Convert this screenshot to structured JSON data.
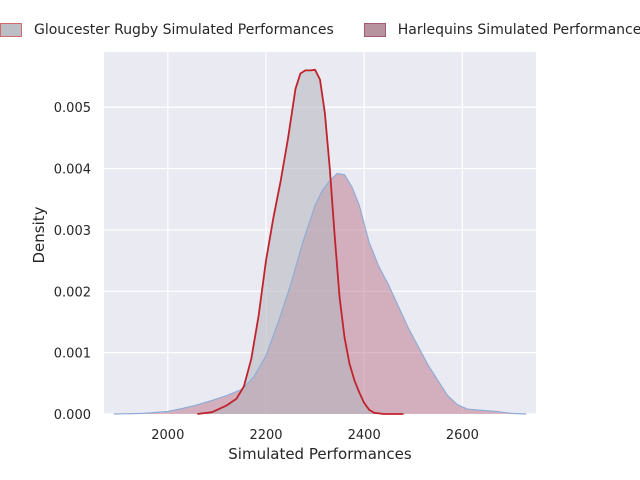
{
  "chart_data": {
    "type": "area",
    "title": "",
    "xlabel": "Simulated Performances",
    "ylabel": "Density",
    "xlim": [
      1870,
      2750
    ],
    "ylim": [
      0,
      0.0059
    ],
    "x_ticks": [
      "2000",
      "2200",
      "2400",
      "2600"
    ],
    "y_ticks": [
      "0.000",
      "0.001",
      "0.002",
      "0.003",
      "0.004",
      "0.005"
    ],
    "grid": true,
    "legend_position": "top",
    "series": [
      {
        "name": "Gloucester Rugby Simulated Performances",
        "fill_color": "#b3b5bd",
        "line_color": "#c0232c",
        "x": [
          2060,
          2090,
          2120,
          2140,
          2155,
          2170,
          2185,
          2200,
          2215,
          2230,
          2245,
          2260,
          2270,
          2280,
          2290,
          2300,
          2310,
          2320,
          2330,
          2340,
          2350,
          2360,
          2370,
          2380,
          2390,
          2400,
          2410,
          2420,
          2440,
          2460,
          2480
        ],
        "y": [
          0.0,
          3e-05,
          0.00014,
          0.00025,
          0.00045,
          0.0009,
          0.0016,
          0.0025,
          0.0032,
          0.0038,
          0.0045,
          0.0053,
          0.00555,
          0.0056,
          0.0056,
          0.00561,
          0.00545,
          0.0049,
          0.004,
          0.0029,
          0.0019,
          0.00125,
          0.00082,
          0.00055,
          0.00035,
          0.00018,
          7e-05,
          2e-05,
          0.0,
          0.0,
          0.0
        ]
      },
      {
        "name": "Harlequins Simulated Performances",
        "fill_color": "#c07d93",
        "line_color": "#8fadd6",
        "x": [
          1890,
          1950,
          2000,
          2030,
          2060,
          2090,
          2120,
          2150,
          2175,
          2200,
          2225,
          2250,
          2275,
          2300,
          2315,
          2330,
          2345,
          2360,
          2375,
          2390,
          2410,
          2430,
          2450,
          2470,
          2490,
          2510,
          2530,
          2550,
          2570,
          2590,
          2610,
          2640,
          2670,
          2700,
          2730
        ],
        "y": [
          0.0,
          1e-05,
          4e-05,
          9e-05,
          0.00015,
          0.00022,
          0.0003,
          0.0004,
          0.0006,
          0.00095,
          0.0015,
          0.0021,
          0.0028,
          0.0034,
          0.00365,
          0.0038,
          0.00392,
          0.0039,
          0.0037,
          0.0034,
          0.0028,
          0.0024,
          0.0021,
          0.00175,
          0.0014,
          0.0011,
          0.0008,
          0.00055,
          0.0003,
          0.00015,
          8e-05,
          6e-05,
          4e-05,
          1e-05,
          0.0
        ]
      }
    ]
  }
}
